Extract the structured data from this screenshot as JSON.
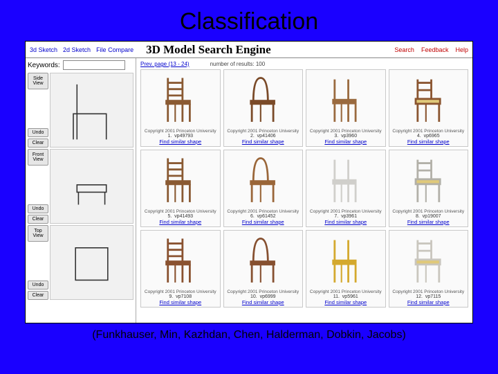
{
  "slide": {
    "title": "Classification",
    "citation": "(Funkhauser, Min, Kazhdan, Chen, Halderman, Dobkin, Jacobs)"
  },
  "topbar": {
    "tabs": [
      "3d Sketch",
      "2d Sketch",
      "File Compare"
    ],
    "app_title": "3D Model Search Engine",
    "right_links": [
      "Search",
      "Feedback",
      "Help"
    ]
  },
  "left": {
    "keywords_label": "Keywords:",
    "keywords_value": "",
    "blocks": [
      {
        "view_label": "Side\nView",
        "buttons": [
          "Undo",
          "Clear"
        ]
      },
      {
        "view_label": "Front\nView",
        "buttons": [
          "Undo",
          "Clear"
        ]
      },
      {
        "view_label": "Top\nView",
        "buttons": [
          "Undo",
          "Clear"
        ]
      }
    ]
  },
  "results": {
    "prev_link": "Prev. page (13 - 24)",
    "count_text": "number of results: 100",
    "link_label": "Find similar shape",
    "caption_text": "Copyright 2001 Princeton University",
    "items": [
      {
        "n": 1,
        "id": "vp49793",
        "color": "#8a5a33"
      },
      {
        "n": 2,
        "id": "vp41406",
        "color": "#7a4a28"
      },
      {
        "n": 3,
        "id": "vp3960",
        "color": "#9a6a3f"
      },
      {
        "n": 4,
        "id": "vp6965",
        "color": "#8a5530"
      },
      {
        "n": 5,
        "id": "vp41493",
        "color": "#8a5a33"
      },
      {
        "n": 6,
        "id": "vp61452",
        "color": "#9a6639"
      },
      {
        "n": 7,
        "id": "vp3961",
        "color": "#d0cfcb"
      },
      {
        "n": 8,
        "id": "vp19007",
        "color": "#b2b0a8"
      },
      {
        "n": 9,
        "id": "vp7108",
        "color": "#8a5230"
      },
      {
        "n": 10,
        "id": "vp6999",
        "color": "#865030"
      },
      {
        "n": 11,
        "id": "vp5961",
        "color": "#d4a92e"
      },
      {
        "n": 12,
        "id": "vp7115",
        "color": "#c9c6be"
      }
    ]
  },
  "colors": {
    "page_bg": "#1a00ff",
    "panel_bg": "#ffffff",
    "link": "#0000cc",
    "rlink": "#c00000"
  }
}
